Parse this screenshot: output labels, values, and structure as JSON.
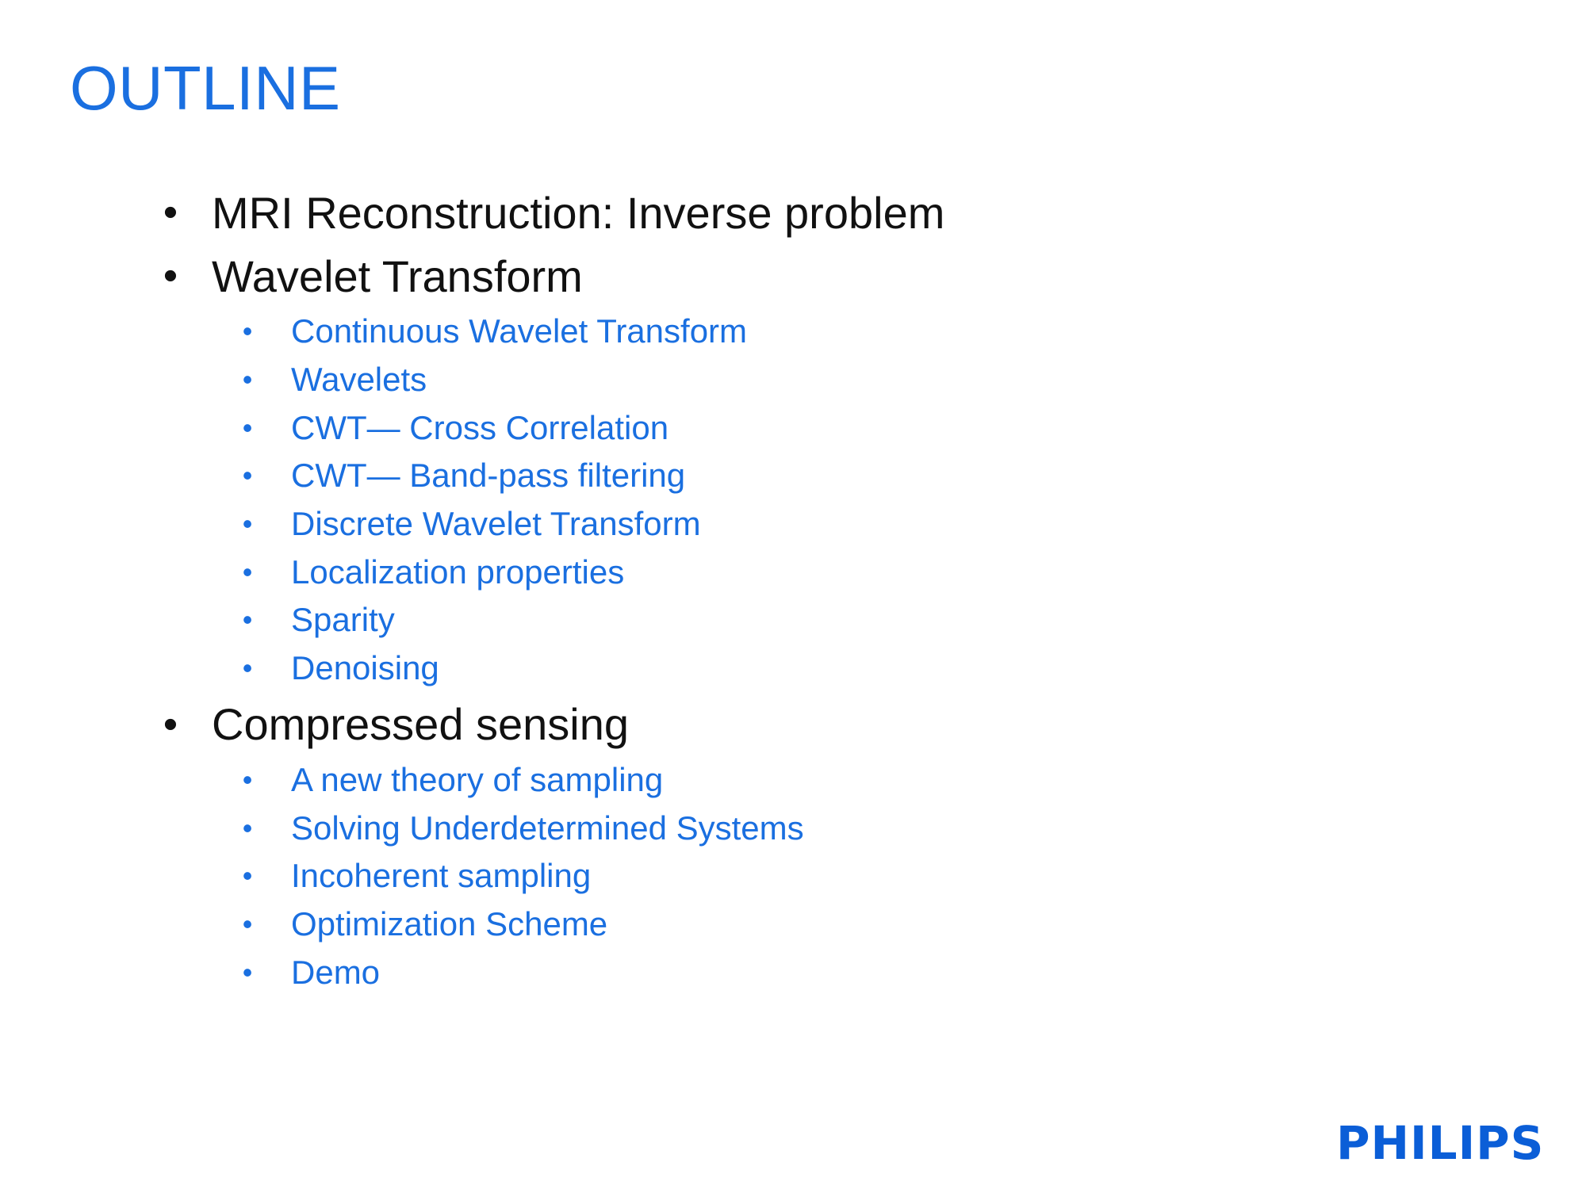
{
  "slide": {
    "title": "OUTLINE",
    "bullet_glyph": "•",
    "sections": [
      {
        "label": "MRI Reconstruction: Inverse problem",
        "items": []
      },
      {
        "label": "Wavelet Transform",
        "items": [
          "Continuous Wavelet Transform",
          "Wavelets",
          "CWT— Cross Correlation",
          "CWT— Band-pass filtering",
          "Discrete Wavelet Transform",
          "Localization properties",
          "Sparity",
          "Denoising"
        ]
      },
      {
        "label": "Compressed sensing",
        "items": [
          "A new theory of sampling",
          "Solving Underdetermined Systems",
          "Incoherent sampling",
          "Optimization Scheme",
          "Demo"
        ]
      }
    ],
    "logo": "PHILIPS"
  },
  "colors": {
    "title": "#1a6fe0",
    "level1_text": "#111111",
    "level2_text": "#1a6fe0",
    "logo": "#0b5ed7",
    "background": "#ffffff"
  }
}
